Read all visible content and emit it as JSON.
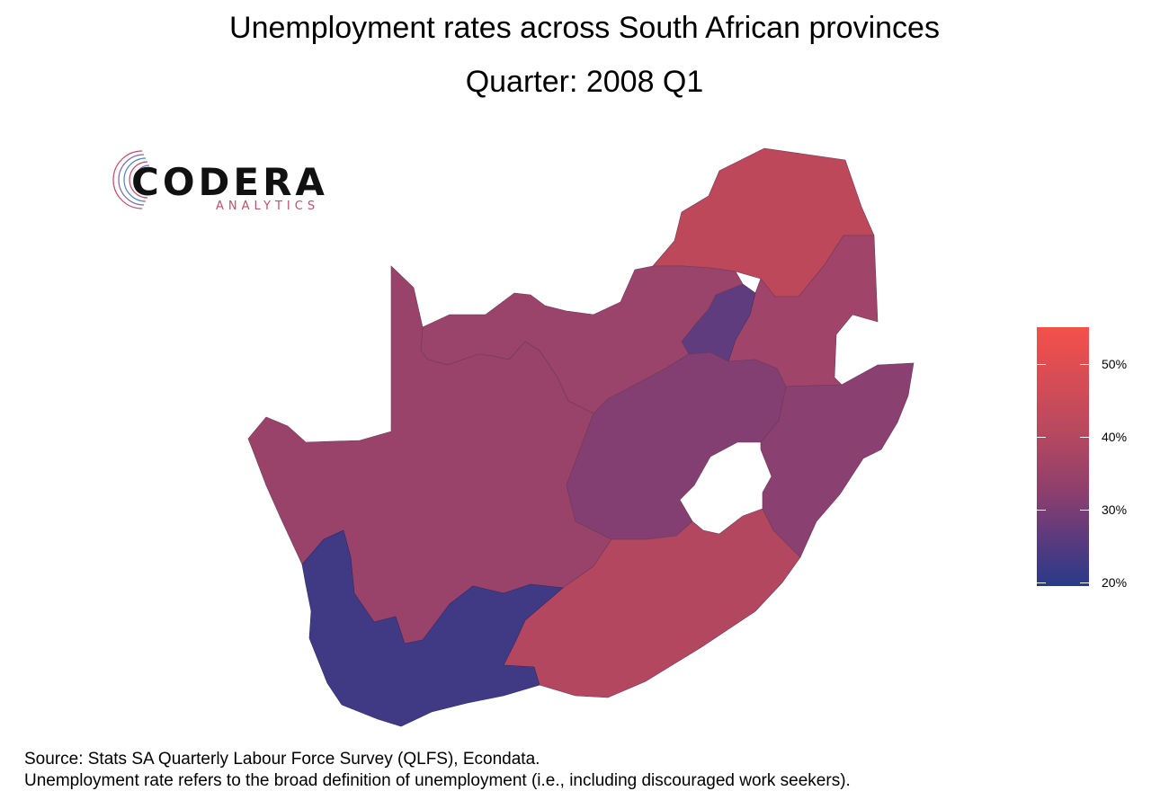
{
  "title": "Unemployment rates across South African provinces",
  "subtitle": "Quarter: 2008 Q1",
  "logo": {
    "name": "CODERA",
    "sub": "ANALYTICS"
  },
  "legend": {
    "ticks": [
      {
        "label": "50%",
        "value": 50
      },
      {
        "label": "40%",
        "value": 40
      },
      {
        "label": "30%",
        "value": 30
      },
      {
        "label": "20%",
        "value": 20
      }
    ],
    "min": 19.5,
    "max": 55,
    "colors": {
      "low": "#2a3a8a",
      "high": "#f5504a"
    }
  },
  "provinces": [
    {
      "name": "Limpopo",
      "color": "#bc4859"
    },
    {
      "name": "Mpumalanga",
      "color": "#a0446a"
    },
    {
      "name": "Gauteng",
      "color": "#5e3c7e"
    },
    {
      "name": "North West",
      "color": "#9a436b"
    },
    {
      "name": "Northern Cape",
      "color": "#9a436a"
    },
    {
      "name": "Free State",
      "color": "#843f72"
    },
    {
      "name": "KwaZulu-Natal",
      "color": "#8a4070"
    },
    {
      "name": "Eastern Cape",
      "color": "#b34760"
    },
    {
      "name": "Western Cape",
      "color": "#403a85"
    }
  ],
  "caption": {
    "line1": "Source: Stats SA Quarterly Labour Force Survey (QLFS), Econdata.",
    "line2": "Unemployment rate refers to the broad definition of unemployment (i.e., including discouraged work seekers)."
  }
}
